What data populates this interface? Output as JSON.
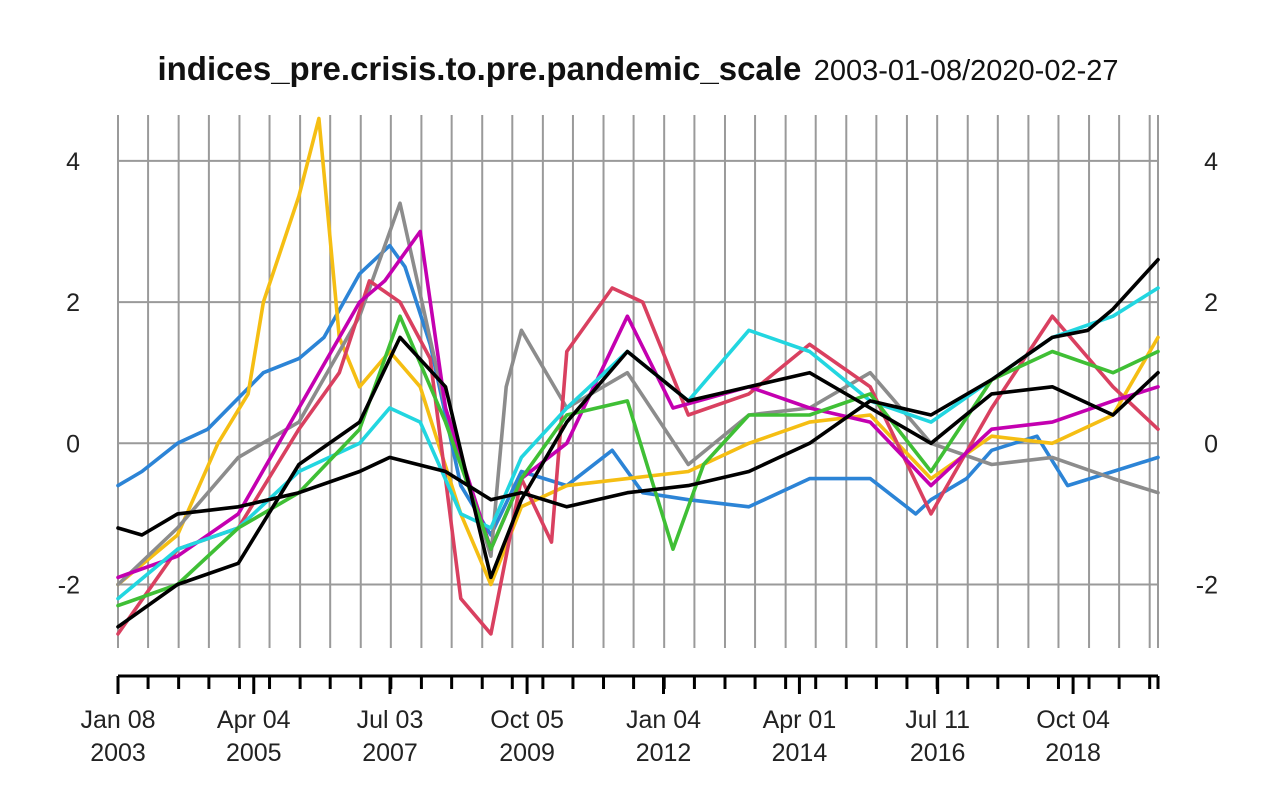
{
  "chart_data": {
    "type": "line",
    "title": "indices_pre.crisis.to.pre.pandemic_scale",
    "date_range": "2003-01-08/2020-02-27",
    "xlim": [
      "2003-01-08",
      "2020-02-27"
    ],
    "ylim": [
      -2.9,
      4.65
    ],
    "y_ticks": [
      -2,
      0,
      2,
      4
    ],
    "x_ticks": [
      {
        "line1": "Jan 08",
        "line2": "2003",
        "date": "2003-01-08"
      },
      {
        "line1": "Apr 04",
        "line2": "2005",
        "date": "2005-04-04"
      },
      {
        "line1": "Jul 03",
        "line2": "2007",
        "date": "2007-07-03"
      },
      {
        "line1": "Oct 05",
        "line2": "2009",
        "date": "2009-10-05"
      },
      {
        "line1": "Jan 04",
        "line2": "2012",
        "date": "2012-01-04"
      },
      {
        "line1": "Apr 01",
        "line2": "2014",
        "date": "2014-04-01"
      },
      {
        "line1": "Jul 11",
        "line2": "2016",
        "date": "2016-07-11"
      },
      {
        "line1": "Oct 04",
        "line2": "2018",
        "date": "2018-10-04"
      }
    ],
    "grid": true,
    "legend": "none",
    "series": [
      {
        "color": "#2c84d6",
        "points": [
          [
            "2003-01-08",
            -0.6
          ],
          [
            "2003-06-01",
            -0.4
          ],
          [
            "2004-01-01",
            0.0
          ],
          [
            "2004-07-01",
            0.2
          ],
          [
            "2005-06-01",
            1.0
          ],
          [
            "2006-01-01",
            1.2
          ],
          [
            "2006-06-01",
            1.5
          ],
          [
            "2007-01-01",
            2.4
          ],
          [
            "2007-07-01",
            2.8
          ],
          [
            "2007-10-01",
            2.5
          ],
          [
            "2008-03-01",
            1.4
          ],
          [
            "2008-09-01",
            -0.6
          ],
          [
            "2009-03-01",
            -1.3
          ],
          [
            "2009-09-01",
            -0.4
          ],
          [
            "2010-06-01",
            -0.6
          ],
          [
            "2011-03-01",
            -0.1
          ],
          [
            "2011-09-01",
            -0.7
          ],
          [
            "2012-06-01",
            -0.8
          ],
          [
            "2013-06-01",
            -0.9
          ],
          [
            "2014-06-01",
            -0.5
          ],
          [
            "2015-06-01",
            -0.5
          ],
          [
            "2016-03-01",
            -1.0
          ],
          [
            "2016-06-01",
            -0.8
          ],
          [
            "2017-01-01",
            -0.5
          ],
          [
            "2017-06-01",
            -0.1
          ],
          [
            "2018-03-01",
            0.1
          ],
          [
            "2018-09-01",
            -0.6
          ],
          [
            "2019-06-01",
            -0.4
          ],
          [
            "2020-02-27",
            -0.2
          ]
        ]
      },
      {
        "color": "#f5be13",
        "points": [
          [
            "2003-01-08",
            -2.0
          ],
          [
            "2004-01-01",
            -1.3
          ],
          [
            "2004-09-01",
            0.0
          ],
          [
            "2005-03-01",
            0.7
          ],
          [
            "2005-06-01",
            2.0
          ],
          [
            "2006-01-01",
            3.5
          ],
          [
            "2006-05-01",
            4.6
          ],
          [
            "2006-09-01",
            1.5
          ],
          [
            "2007-01-01",
            0.8
          ],
          [
            "2007-07-01",
            1.3
          ],
          [
            "2008-01-01",
            0.8
          ],
          [
            "2008-09-01",
            -1.0
          ],
          [
            "2009-03-01",
            -2.0
          ],
          [
            "2009-09-01",
            -0.9
          ],
          [
            "2010-06-01",
            -0.6
          ],
          [
            "2011-06-01",
            -0.5
          ],
          [
            "2012-06-01",
            -0.4
          ],
          [
            "2013-06-01",
            0.0
          ],
          [
            "2014-06-01",
            0.3
          ],
          [
            "2015-06-01",
            0.4
          ],
          [
            "2016-06-01",
            -0.5
          ],
          [
            "2017-06-01",
            0.1
          ],
          [
            "2018-06-01",
            0.0
          ],
          [
            "2019-06-01",
            0.4
          ],
          [
            "2020-02-27",
            1.5
          ]
        ]
      },
      {
        "color": "#8c8c8c",
        "points": [
          [
            "2003-01-08",
            -2.0
          ],
          [
            "2004-01-01",
            -1.2
          ],
          [
            "2005-01-01",
            -0.2
          ],
          [
            "2006-01-01",
            0.3
          ],
          [
            "2007-01-01",
            1.8
          ],
          [
            "2007-09-01",
            3.4
          ],
          [
            "2008-06-01",
            0.5
          ],
          [
            "2009-03-01",
            -1.6
          ],
          [
            "2009-06-01",
            0.8
          ],
          [
            "2009-09-01",
            1.6
          ],
          [
            "2010-06-01",
            0.5
          ],
          [
            "2011-06-01",
            1.0
          ],
          [
            "2012-06-01",
            -0.3
          ],
          [
            "2013-06-01",
            0.4
          ],
          [
            "2014-06-01",
            0.5
          ],
          [
            "2015-06-01",
            1.0
          ],
          [
            "2016-06-01",
            0.0
          ],
          [
            "2017-06-01",
            -0.3
          ],
          [
            "2018-06-01",
            -0.2
          ],
          [
            "2019-06-01",
            -0.5
          ],
          [
            "2020-02-27",
            -0.7
          ]
        ]
      },
      {
        "color": "#d94060",
        "points": [
          [
            "2003-01-08",
            -2.7
          ],
          [
            "2004-01-01",
            -1.5
          ],
          [
            "2005-01-01",
            -1.2
          ],
          [
            "2006-01-01",
            0.2
          ],
          [
            "2006-09-01",
            1.0
          ],
          [
            "2007-03-01",
            2.3
          ],
          [
            "2007-09-01",
            2.0
          ],
          [
            "2008-03-01",
            1.2
          ],
          [
            "2008-09-01",
            -2.2
          ],
          [
            "2009-03-01",
            -2.7
          ],
          [
            "2009-09-01",
            -0.5
          ],
          [
            "2010-03-01",
            -1.4
          ],
          [
            "2010-06-01",
            1.3
          ],
          [
            "2011-03-01",
            2.2
          ],
          [
            "2011-09-01",
            2.0
          ],
          [
            "2012-06-01",
            0.4
          ],
          [
            "2013-06-01",
            0.7
          ],
          [
            "2014-06-01",
            1.4
          ],
          [
            "2015-06-01",
            0.8
          ],
          [
            "2016-06-01",
            -1.0
          ],
          [
            "2017-06-01",
            0.5
          ],
          [
            "2018-06-01",
            1.8
          ],
          [
            "2019-06-01",
            0.8
          ],
          [
            "2020-02-27",
            0.2
          ]
        ]
      },
      {
        "color": "#c400b0",
        "points": [
          [
            "2003-01-08",
            -1.9
          ],
          [
            "2004-01-01",
            -1.6
          ],
          [
            "2005-01-01",
            -1.0
          ],
          [
            "2006-01-01",
            0.5
          ],
          [
            "2007-01-01",
            2.0
          ],
          [
            "2007-06-01",
            2.3
          ],
          [
            "2008-01-01",
            3.0
          ],
          [
            "2008-06-01",
            0.5
          ],
          [
            "2009-03-01",
            -1.5
          ],
          [
            "2009-09-01",
            -0.5
          ],
          [
            "2010-06-01",
            0.0
          ],
          [
            "2011-06-01",
            1.8
          ],
          [
            "2012-03-01",
            0.5
          ],
          [
            "2013-06-01",
            0.8
          ],
          [
            "2014-06-01",
            0.5
          ],
          [
            "2015-06-01",
            0.3
          ],
          [
            "2016-06-01",
            -0.6
          ],
          [
            "2017-06-01",
            0.2
          ],
          [
            "2018-06-01",
            0.3
          ],
          [
            "2019-06-01",
            0.6
          ],
          [
            "2020-02-27",
            0.8
          ]
        ]
      },
      {
        "color": "#22d6e0",
        "points": [
          [
            "2003-01-08",
            -2.2
          ],
          [
            "2004-01-01",
            -1.5
          ],
          [
            "2005-01-01",
            -1.2
          ],
          [
            "2006-01-01",
            -0.4
          ],
          [
            "2007-01-01",
            0.0
          ],
          [
            "2007-07-01",
            0.5
          ],
          [
            "2008-01-01",
            0.3
          ],
          [
            "2008-09-01",
            -1.0
          ],
          [
            "2009-03-01",
            -1.2
          ],
          [
            "2009-09-01",
            -0.2
          ],
          [
            "2010-06-01",
            0.5
          ],
          [
            "2011-06-01",
            1.3
          ],
          [
            "2012-06-01",
            0.6
          ],
          [
            "2013-06-01",
            1.6
          ],
          [
            "2014-06-01",
            1.3
          ],
          [
            "2015-06-01",
            0.6
          ],
          [
            "2016-06-01",
            0.3
          ],
          [
            "2017-06-01",
            0.9
          ],
          [
            "2018-06-01",
            1.5
          ],
          [
            "2019-06-01",
            1.8
          ],
          [
            "2020-02-27",
            2.2
          ]
        ]
      },
      {
        "color": "#3fbf35",
        "points": [
          [
            "2003-01-08",
            -2.3
          ],
          [
            "2004-01-01",
            -2.0
          ],
          [
            "2005-01-01",
            -1.2
          ],
          [
            "2006-01-01",
            -0.7
          ],
          [
            "2007-01-01",
            0.2
          ],
          [
            "2007-09-01",
            1.8
          ],
          [
            "2008-06-01",
            0.3
          ],
          [
            "2009-03-01",
            -1.5
          ],
          [
            "2009-09-01",
            -0.5
          ],
          [
            "2010-06-01",
            0.4
          ],
          [
            "2011-06-01",
            0.6
          ],
          [
            "2012-03-01",
            -1.5
          ],
          [
            "2012-09-01",
            -0.3
          ],
          [
            "2013-06-01",
            0.4
          ],
          [
            "2014-06-01",
            0.4
          ],
          [
            "2015-06-01",
            0.7
          ],
          [
            "2016-06-01",
            -0.4
          ],
          [
            "2017-06-01",
            0.9
          ],
          [
            "2018-06-01",
            1.3
          ],
          [
            "2019-06-01",
            1.0
          ],
          [
            "2020-02-27",
            1.3
          ]
        ]
      },
      {
        "color": "#000000",
        "points": [
          [
            "2003-01-08",
            -1.2
          ],
          [
            "2003-06-01",
            -1.3
          ],
          [
            "2004-01-01",
            -1.0
          ],
          [
            "2005-01-01",
            -0.9
          ],
          [
            "2006-01-01",
            -0.7
          ],
          [
            "2007-01-01",
            -0.4
          ],
          [
            "2007-07-01",
            -0.2
          ],
          [
            "2008-06-01",
            -0.4
          ],
          [
            "2009-03-01",
            -0.8
          ],
          [
            "2009-09-01",
            -0.7
          ],
          [
            "2010-06-01",
            -0.9
          ],
          [
            "2011-06-01",
            -0.7
          ],
          [
            "2012-06-01",
            -0.6
          ],
          [
            "2013-06-01",
            -0.4
          ],
          [
            "2014-06-01",
            0.0
          ],
          [
            "2015-06-01",
            0.6
          ],
          [
            "2016-06-01",
            0.4
          ],
          [
            "2017-06-01",
            0.9
          ],
          [
            "2018-06-01",
            1.5
          ],
          [
            "2019-01-01",
            1.6
          ],
          [
            "2019-06-01",
            1.9
          ],
          [
            "2020-02-27",
            2.6
          ]
        ]
      },
      {
        "color": "#000000",
        "points": [
          [
            "2003-01-08",
            -2.6
          ],
          [
            "2004-01-01",
            -2.0
          ],
          [
            "2005-01-01",
            -1.7
          ],
          [
            "2006-01-01",
            -0.3
          ],
          [
            "2007-01-01",
            0.3
          ],
          [
            "2007-09-01",
            1.5
          ],
          [
            "2008-06-01",
            0.8
          ],
          [
            "2009-03-01",
            -1.9
          ],
          [
            "2009-09-01",
            -0.8
          ],
          [
            "2010-06-01",
            0.3
          ],
          [
            "2011-06-01",
            1.3
          ],
          [
            "2012-06-01",
            0.6
          ],
          [
            "2013-06-01",
            0.8
          ],
          [
            "2014-06-01",
            1.0
          ],
          [
            "2015-06-01",
            0.5
          ],
          [
            "2016-06-01",
            0.0
          ],
          [
            "2017-06-01",
            0.7
          ],
          [
            "2018-06-01",
            0.8
          ],
          [
            "2019-06-01",
            0.4
          ],
          [
            "2020-02-27",
            1.0
          ]
        ]
      }
    ]
  }
}
